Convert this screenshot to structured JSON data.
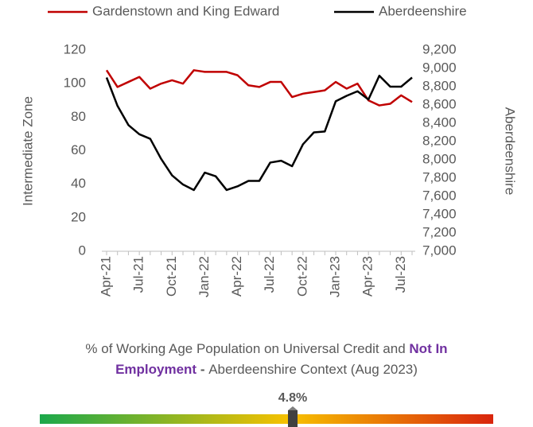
{
  "chart_data": {
    "type": "line",
    "categories": [
      "Apr-21",
      null,
      null,
      "Jul-21",
      null,
      null,
      "Oct-21",
      null,
      null,
      "Jan-22",
      null,
      null,
      "Apr-22",
      null,
      null,
      "Jul-22",
      null,
      null,
      "Oct-22",
      null,
      null,
      "Jan-23",
      null,
      null,
      "Apr-23",
      null,
      null,
      "Jul-23",
      null
    ],
    "series": [
      {
        "name": "Gardenstown and King Edward",
        "color": "#c00000",
        "values": [
          108,
          98,
          101,
          104,
          97,
          100,
          102,
          100,
          108,
          107,
          107,
          107,
          105,
          99,
          98,
          101,
          101,
          92,
          94,
          95,
          96,
          101,
          97,
          100,
          90,
          87,
          88,
          93,
          89
        ]
      },
      {
        "name": "Aberdeenshire",
        "color": "#000000",
        "axis": "y2",
        "values": [
          8900,
          8590,
          8380,
          8280,
          8230,
          8010,
          7830,
          7730,
          7670,
          7860,
          7820,
          7670,
          7710,
          7770,
          7770,
          7970,
          7990,
          7930,
          8170,
          8300,
          8310,
          8640,
          8700,
          8750,
          8660,
          8920,
          8800,
          8800,
          8900
        ]
      }
    ],
    "ylabel": "Intermediate Zone",
    "y2label": "Aberdeenshire",
    "ylim": [
      0,
      120
    ],
    "yticks": [
      0,
      20,
      40,
      60,
      80,
      100,
      120
    ],
    "y2lim": [
      7000,
      9200
    ],
    "y2ticks": [
      {
        "value": 7000,
        "label": "7,000"
      },
      {
        "value": 7200,
        "label": "7,200"
      },
      {
        "value": 7400,
        "label": "7,400"
      },
      {
        "value": 7600,
        "label": "7,600"
      },
      {
        "value": 7800,
        "label": "7,800"
      },
      {
        "value": 8000,
        "label": "8,000"
      },
      {
        "value": 8200,
        "label": "8,200"
      },
      {
        "value": 8400,
        "label": "8,400"
      },
      {
        "value": 8600,
        "label": "8,600"
      },
      {
        "value": 8800,
        "label": "8,800"
      },
      {
        "value": 9000,
        "label": "9,000"
      },
      {
        "value": 9200,
        "label": "9,200"
      }
    ],
    "legend": "top",
    "grid": false
  },
  "context": {
    "title_parts": [
      {
        "text": "% of Working Age Population on Universal Credit and ",
        "color": "#595959",
        "bold": false
      },
      {
        "text": "Not In Employment",
        "color": "#7030a0",
        "bold": true
      },
      {
        "text": " - ",
        "color": "#595959",
        "bold": true
      },
      {
        "text": "Aberdeenshire Context (Aug 2023)",
        "color": "#595959",
        "bold": false
      }
    ],
    "gauge_label": "4.8%"
  }
}
